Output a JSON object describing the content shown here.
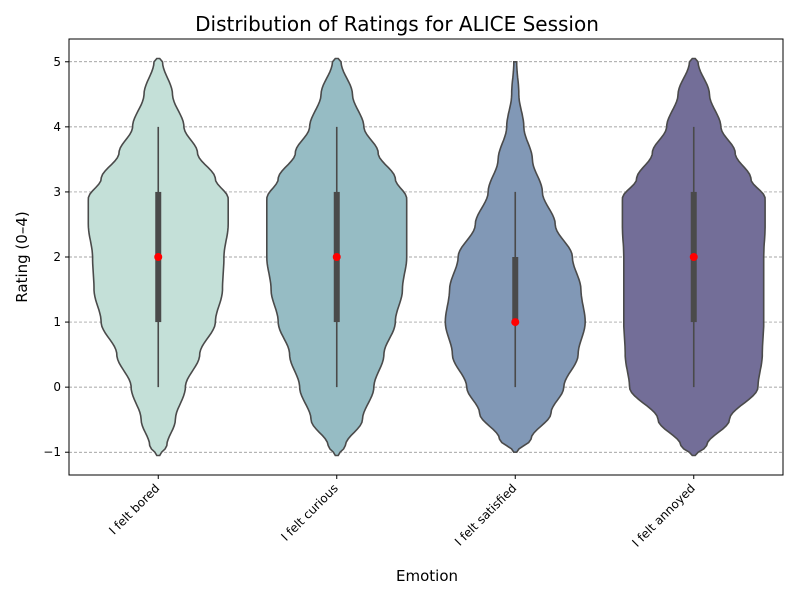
{
  "chart_data": {
    "type": "violin",
    "title": "Distribution of Ratings for ALICE Session",
    "xlabel": "Emotion",
    "ylabel": "Rating (0–4)",
    "ylim": [
      -1.35,
      5.35
    ],
    "yticks": [
      -1,
      0,
      1,
      2,
      3,
      4,
      5
    ],
    "ytick_labels": [
      "−1",
      "0",
      "1",
      "2",
      "3",
      "4",
      "5"
    ],
    "grid": "y-dashed",
    "categories": [
      "I felt bored",
      "I felt curious",
      "I felt satisfied",
      "I felt annoyed"
    ],
    "colors": [
      "#c4e0d8",
      "#96bcc4",
      "#8198b6",
      "#736e98"
    ],
    "median_color": "#ff0000",
    "series": [
      {
        "category": "I felt bored",
        "median": 2,
        "q1": 1,
        "q3": 3,
        "whisker_low": 0,
        "whisker_high": 4,
        "kde_min": -1.05,
        "kde_max": 5.05,
        "profile": [
          [
            -1.05,
            0.02
          ],
          [
            -0.9,
            0.12
          ],
          [
            -0.5,
            0.24
          ],
          [
            0,
            0.38
          ],
          [
            0.5,
            0.58
          ],
          [
            1,
            0.8
          ],
          [
            1.5,
            0.9
          ],
          [
            2,
            0.92
          ],
          [
            2.5,
            0.98
          ],
          [
            2.9,
            0.98
          ],
          [
            3.2,
            0.8
          ],
          [
            3.6,
            0.55
          ],
          [
            4,
            0.36
          ],
          [
            4.5,
            0.2
          ],
          [
            5,
            0.06
          ],
          [
            5.05,
            0.02
          ]
        ]
      },
      {
        "category": "I felt curious",
        "median": 2,
        "q1": 1,
        "q3": 3,
        "whisker_low": 0,
        "whisker_high": 4,
        "kde_min": -1.05,
        "kde_max": 5.05,
        "profile": [
          [
            -1.05,
            0.02
          ],
          [
            -0.9,
            0.12
          ],
          [
            -0.5,
            0.36
          ],
          [
            0,
            0.52
          ],
          [
            0.5,
            0.66
          ],
          [
            1,
            0.82
          ],
          [
            1.5,
            0.92
          ],
          [
            2,
            0.98
          ],
          [
            2.5,
            0.98
          ],
          [
            2.9,
            0.98
          ],
          [
            3.2,
            0.82
          ],
          [
            3.6,
            0.58
          ],
          [
            4,
            0.38
          ],
          [
            4.5,
            0.22
          ],
          [
            5,
            0.06
          ],
          [
            5.05,
            0.02
          ]
        ]
      },
      {
        "category": "I felt satisfied",
        "median": 1,
        "q1": 1,
        "q3": 2,
        "whisker_low": 0,
        "whisker_high": 3,
        "kde_min": -1,
        "kde_max": 5,
        "profile": [
          [
            -1,
            0.02
          ],
          [
            -0.8,
            0.22
          ],
          [
            -0.4,
            0.5
          ],
          [
            0,
            0.68
          ],
          [
            0.5,
            0.88
          ],
          [
            1,
            0.98
          ],
          [
            1.5,
            0.92
          ],
          [
            2,
            0.8
          ],
          [
            2.5,
            0.56
          ],
          [
            3,
            0.38
          ],
          [
            3.5,
            0.24
          ],
          [
            4,
            0.12
          ],
          [
            4.5,
            0.05
          ],
          [
            5,
            0.02
          ]
        ]
      },
      {
        "category": "I felt annoyed",
        "median": 2,
        "q1": 1,
        "q3": 3,
        "whisker_low": 0,
        "whisker_high": 4,
        "kde_min": -1.05,
        "kde_max": 5.05,
        "profile": [
          [
            -1.05,
            0.02
          ],
          [
            -0.9,
            0.18
          ],
          [
            -0.5,
            0.5
          ],
          [
            0,
            0.9
          ],
          [
            0.5,
            0.96
          ],
          [
            1,
            0.98
          ],
          [
            1.5,
            0.98
          ],
          [
            2,
            0.98
          ],
          [
            2.5,
            1.0
          ],
          [
            2.9,
            1.0
          ],
          [
            3.2,
            0.8
          ],
          [
            3.6,
            0.58
          ],
          [
            4,
            0.38
          ],
          [
            4.5,
            0.22
          ],
          [
            5,
            0.06
          ],
          [
            5.05,
            0.02
          ]
        ]
      }
    ]
  }
}
